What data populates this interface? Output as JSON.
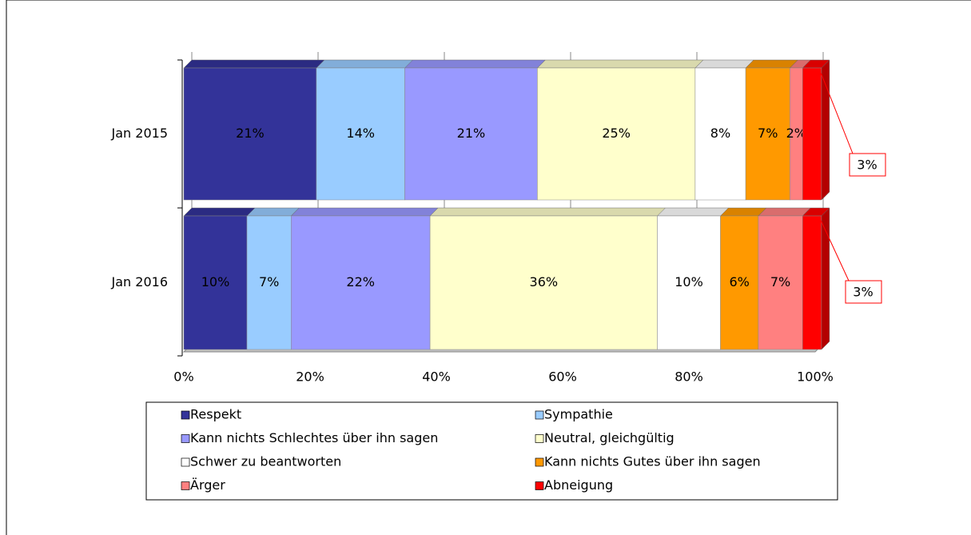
{
  "chart_data": {
    "type": "stacked-bar-horizontal",
    "categories": [
      "Jan 2015",
      "Jan 2016"
    ],
    "series": [
      {
        "name": "Respekt",
        "color": "#333399",
        "values": [
          21,
          10
        ],
        "value_labels": [
          "21%",
          "10%"
        ]
      },
      {
        "name": "Sympathie",
        "color": "#99ccff",
        "values": [
          14,
          7
        ],
        "value_labels": [
          "14%",
          "7%"
        ]
      },
      {
        "name": "Kann nichts Schlechtes über ihn sagen",
        "color": "#9999ff",
        "values": [
          21,
          22
        ],
        "value_labels": [
          "21%",
          "22%"
        ]
      },
      {
        "name": "Neutral, gleichgültig",
        "color": "#ffffcc",
        "values": [
          25,
          36
        ],
        "value_labels": [
          "25%",
          "36%"
        ]
      },
      {
        "name": "Schwer zu beantworten",
        "color": "#ffffff",
        "values": [
          8,
          10
        ],
        "value_labels": [
          "8%",
          "10%"
        ]
      },
      {
        "name": "Kann nichts Gutes über ihn sagen",
        "color": "#ff9900",
        "values": [
          7,
          6
        ],
        "value_labels": [
          "7%",
          "6%"
        ]
      },
      {
        "name": "Ärger",
        "color": "#ff8080",
        "values": [
          2,
          7
        ],
        "value_labels": [
          "2%",
          "7%"
        ]
      },
      {
        "name": "Abneigung",
        "color": "#ff0000",
        "values": [
          3,
          3
        ],
        "value_labels": [
          "3%",
          "3%"
        ]
      }
    ],
    "xlim": [
      0,
      100
    ],
    "xticks": [
      {
        "value": 0,
        "label": "0%"
      },
      {
        "value": 20,
        "label": "20%"
      },
      {
        "value": 40,
        "label": "40%"
      },
      {
        "value": 60,
        "label": "60%"
      },
      {
        "value": 80,
        "label": "80%"
      },
      {
        "value": 100,
        "label": "100%"
      }
    ],
    "grid": true,
    "legend": "bottom"
  }
}
